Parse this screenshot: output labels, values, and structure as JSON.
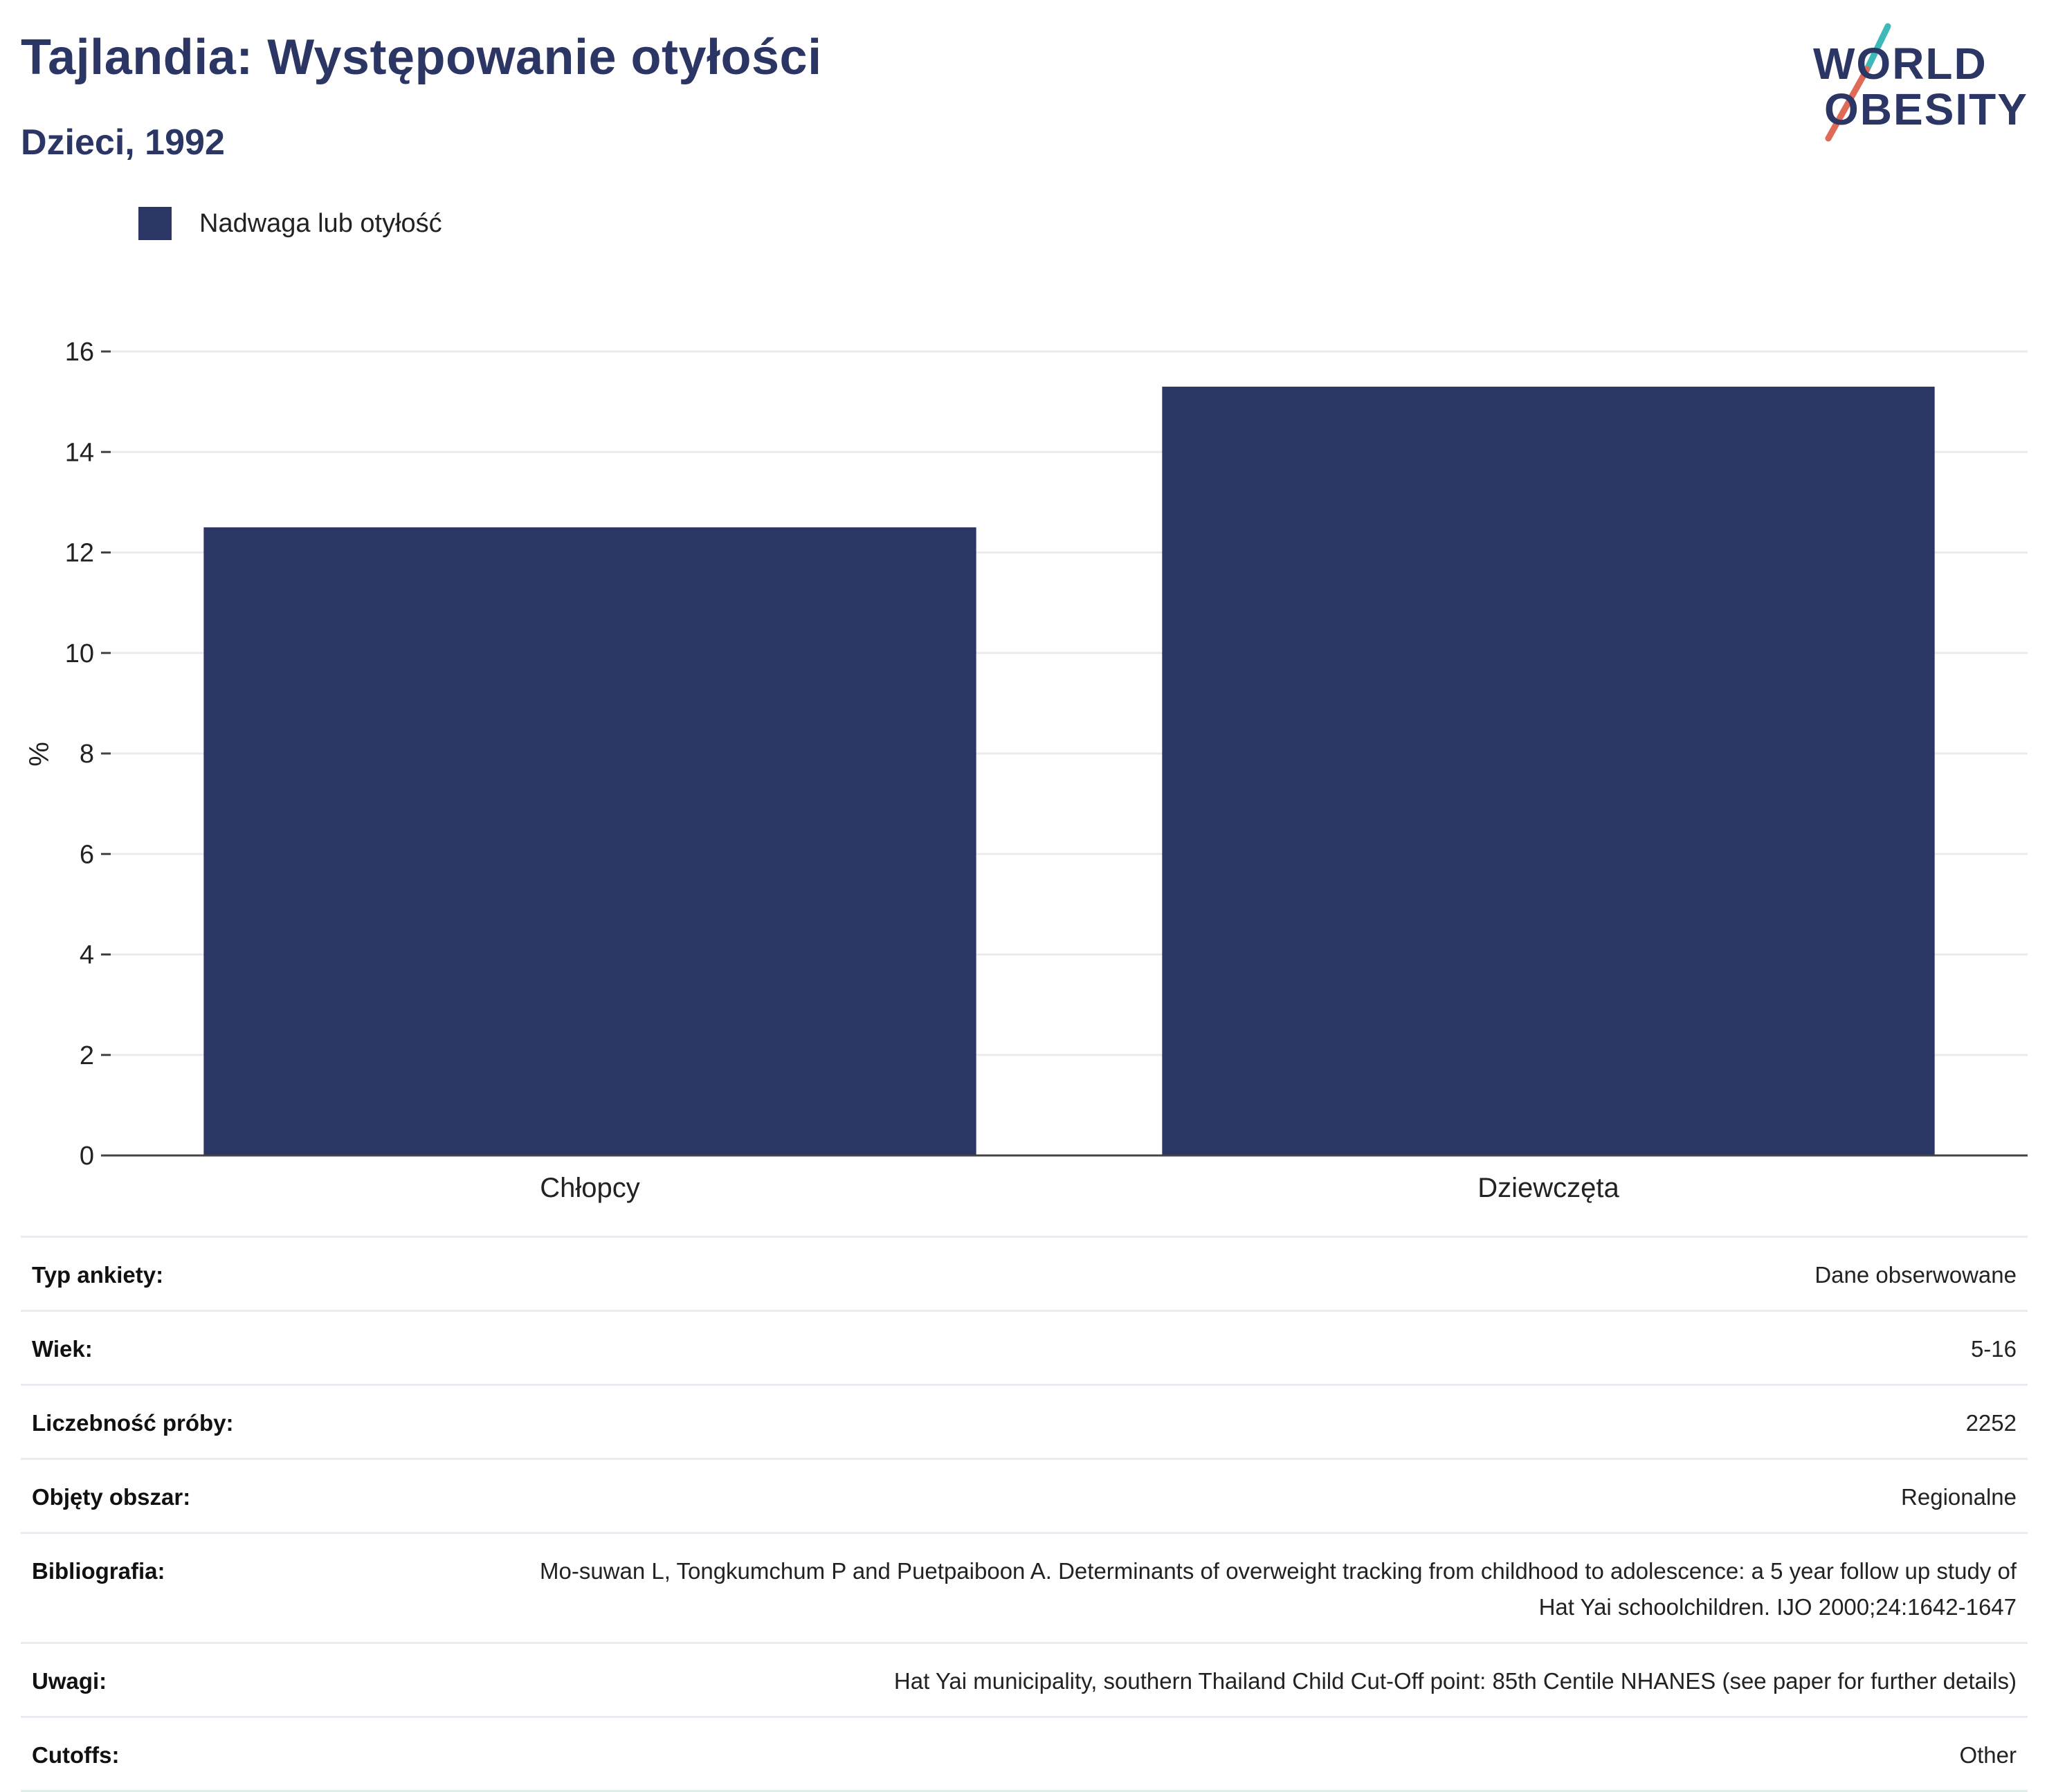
{
  "header": {
    "title": "Tajlandia: Występowanie otyłości",
    "subtitle": "Dzieci, 1992"
  },
  "logo": {
    "line1": "WORLD",
    "line2": "OBESITY"
  },
  "legend": {
    "label": "Nadwaga lub otyłość",
    "color": "#2b3664"
  },
  "chart_data": {
    "type": "bar",
    "categories": [
      "Chłopcy",
      "Dziewczęta"
    ],
    "series": [
      {
        "name": "Nadwaga lub otyłość",
        "values": [
          12.5,
          15.3
        ]
      }
    ],
    "ylabel": "%",
    "ylim": [
      0,
      16
    ],
    "yticks": [
      0,
      2,
      4,
      6,
      8,
      10,
      12,
      14,
      16
    ],
    "grid": true,
    "legend_position": "top-left",
    "bar_color": "#2b3664"
  },
  "info": [
    {
      "label": "Typ ankiety:",
      "value": "Dane obserwowane"
    },
    {
      "label": "Wiek:",
      "value": "5-16"
    },
    {
      "label": "Liczebność próby:",
      "value": "2252"
    },
    {
      "label": "Objęty obszar:",
      "value": "Regionalne"
    },
    {
      "label": "Bibliografia:",
      "value": "Mo-suwan L, Tongkumchum P and Puetpaiboon A. Determinants of overweight tracking from childhood to adolescence: a 5 year follow up study of Hat Yai schoolchildren. IJO 2000;24:1642-1647"
    },
    {
      "label": "Uwagi:",
      "value": "Hat Yai municipality, southern Thailand Child Cut-Off point: 85th Centile NHANES (see paper for further details)"
    },
    {
      "label": "Cutoffs:",
      "value": "Other"
    }
  ]
}
